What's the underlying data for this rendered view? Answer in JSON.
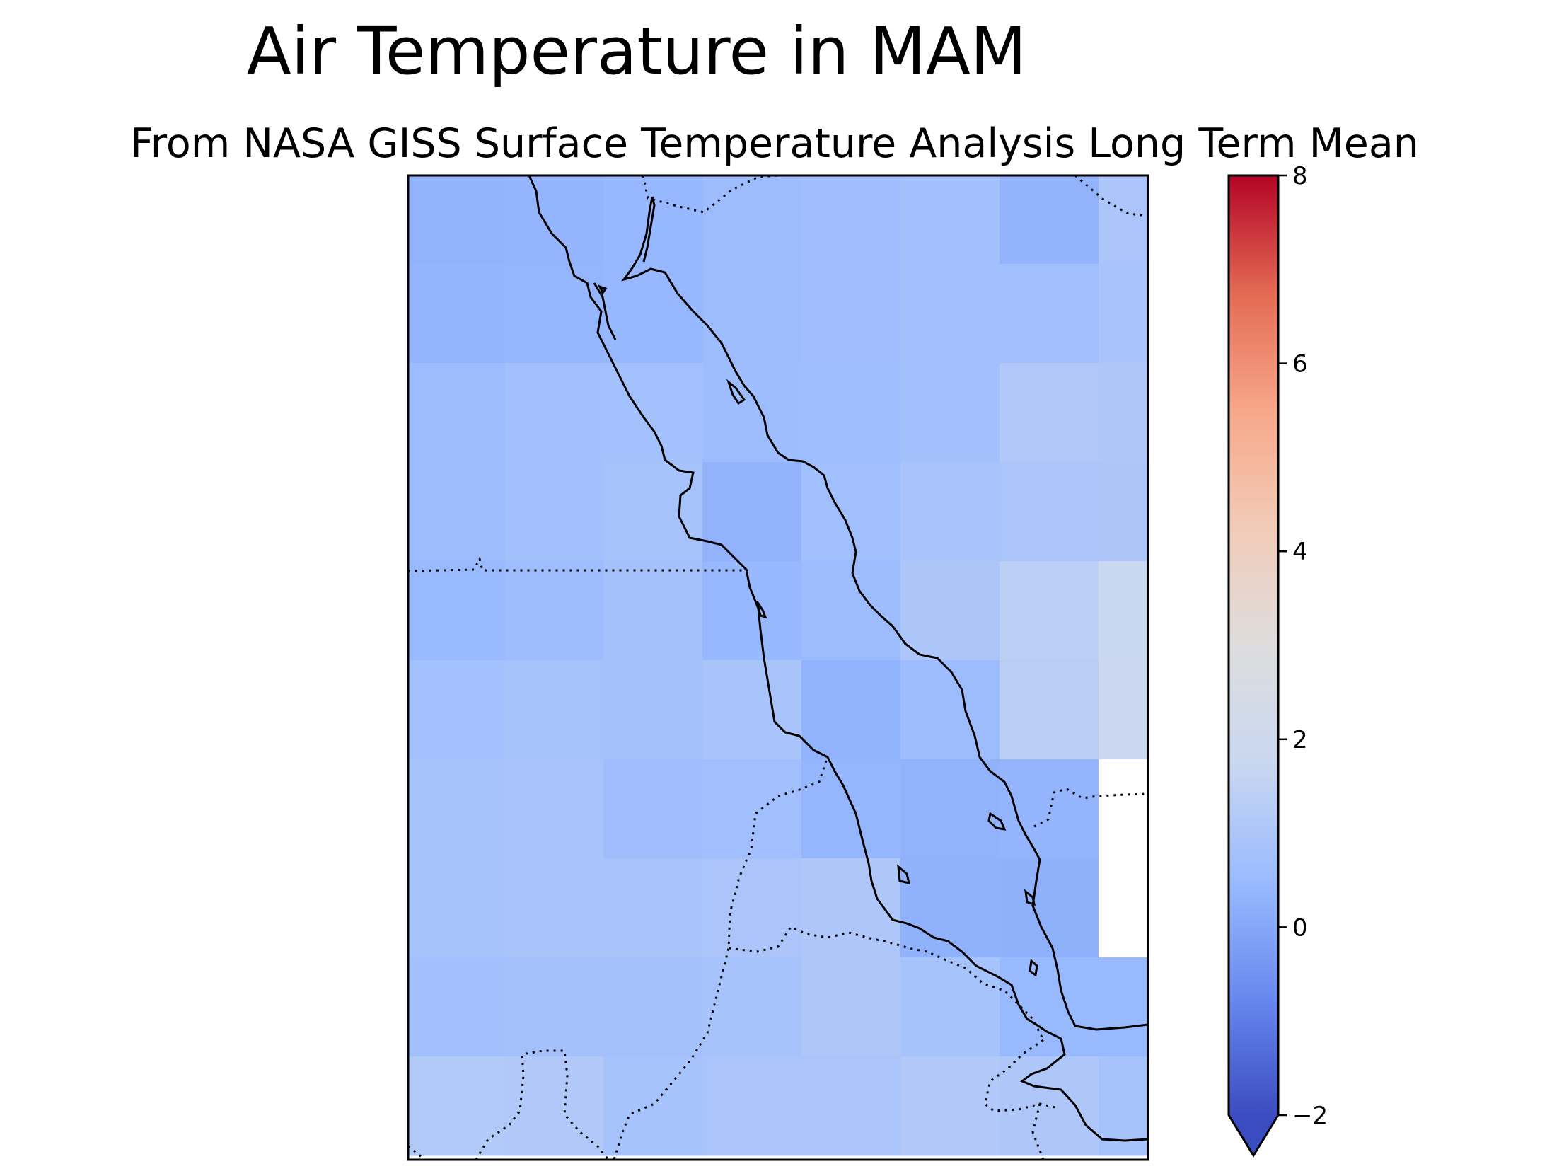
{
  "title": "Air Temperature in MAM",
  "subtitle": "From NASA GISS Surface Temperature Analysis Long Term Mean",
  "colors": {
    "colormap": "coolwarm",
    "coolwarm_stops": [
      "#3b4cc0",
      "#6788ee",
      "#9abbff",
      "#c9d7f0",
      "#dddddd",
      "#f2cbb7",
      "#f7a789",
      "#e36a53",
      "#b40426"
    ],
    "missing": "#ffffff",
    "coastline": "#000000",
    "border": "#000000"
  },
  "chart_data": {
    "type": "heatmap",
    "colorbar": {
      "range": [
        -2,
        8
      ],
      "ticks": [
        "8",
        "6",
        "4",
        "2",
        "0",
        "−2"
      ],
      "tick_values": [
        8,
        6,
        4,
        2,
        0,
        -2
      ],
      "extend": "min"
    },
    "grid_values": [
      [
        0.3,
        0.35,
        0.42,
        0.55,
        0.65,
        0.72,
        0.3,
        0.95
      ],
      [
        0.35,
        0.38,
        0.42,
        0.55,
        0.65,
        0.72,
        0.7,
        0.9
      ],
      [
        0.55,
        0.72,
        0.75,
        0.6,
        0.62,
        0.72,
        1.1,
        1.05
      ],
      [
        0.55,
        0.72,
        0.82,
        0.3,
        0.7,
        0.88,
        0.95,
        1.0
      ],
      [
        0.45,
        0.58,
        0.78,
        0.42,
        0.55,
        1.0,
        1.4,
        1.75
      ],
      [
        0.75,
        0.82,
        0.78,
        0.88,
        0.28,
        0.55,
        1.35,
        1.85
      ],
      [
        0.85,
        0.88,
        0.65,
        0.7,
        0.38,
        0.3,
        0.35,
        null
      ],
      [
        0.85,
        0.88,
        0.88,
        0.95,
        1.05,
        0.25,
        0.22,
        null
      ],
      [
        0.72,
        0.78,
        0.78,
        0.85,
        1.05,
        0.85,
        0.45,
        0.45
      ],
      [
        1.15,
        1.1,
        0.85,
        0.95,
        0.95,
        1.1,
        1.05,
        0.8
      ]
    ],
    "features": [
      "coastline",
      "country-borders"
    ]
  }
}
